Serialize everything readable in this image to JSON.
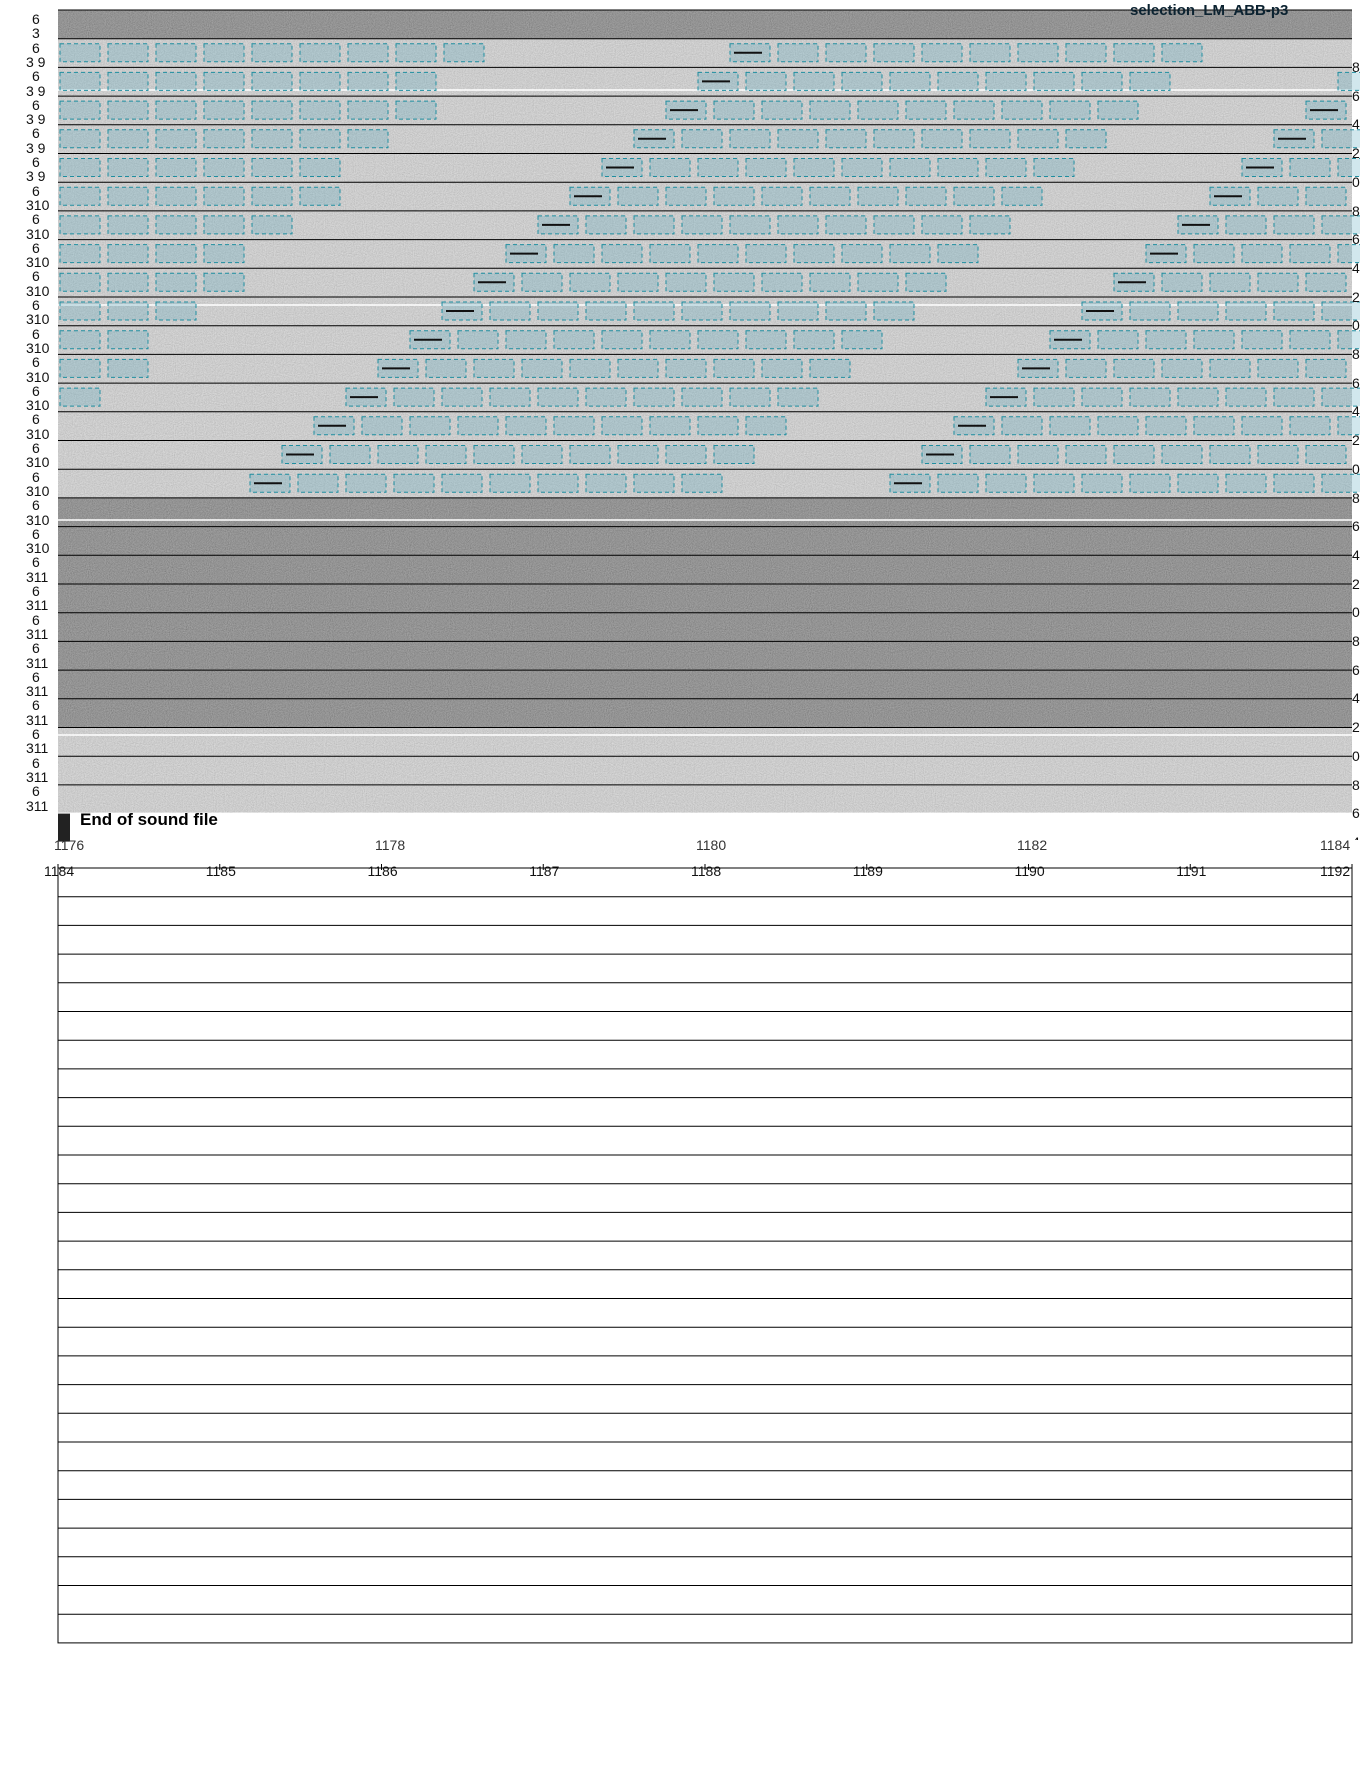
{
  "title": "selection_LM_ABB-p3",
  "end_of_file_label": "End of sound file",
  "row_left_labels": [
    "6",
    "3",
    "6",
    "3 9",
    "6",
    "3 9",
    "6",
    "3 9",
    "6",
    "3 9",
    "6",
    "3 9",
    "6",
    "310",
    "6",
    "310",
    "6",
    "310",
    "6",
    "310",
    "6",
    "310",
    "6",
    "310",
    "6",
    "310",
    "6",
    "310",
    "6",
    "310",
    "6",
    "310",
    "6",
    "310",
    "6",
    "310",
    "6",
    "310",
    "6",
    "311",
    "6",
    "311",
    "6",
    "311",
    "6",
    "311",
    "6",
    "311",
    "6",
    "311",
    "6",
    "311",
    "6",
    "311",
    "6",
    "311"
  ],
  "row_right_labels": [
    "8",
    "6",
    "4",
    "2",
    "0",
    "8",
    "6",
    "4",
    "2",
    "0",
    "8",
    "6",
    "4",
    "2",
    "0",
    "8",
    "6",
    "4",
    "2",
    "0",
    "8",
    "6",
    "4",
    "2",
    "0",
    "8",
    "6",
    "4"
  ],
  "axis_upper_ticks": [
    "1176",
    "1178",
    "1180",
    "1182",
    "1184"
  ],
  "axis_lower_ticks": [
    "1184",
    "1185",
    "1186",
    "1187",
    "1188",
    "1189",
    "1190",
    "1191",
    "1192"
  ],
  "axis_overlap_left": "11",
  "colors": {
    "selection_fill": "#5aa8c0",
    "selection_edge": "#1f8ea0",
    "spectrogram_light": "#9a9a9a",
    "spectrogram_dark": "#3a3a3a"
  }
}
